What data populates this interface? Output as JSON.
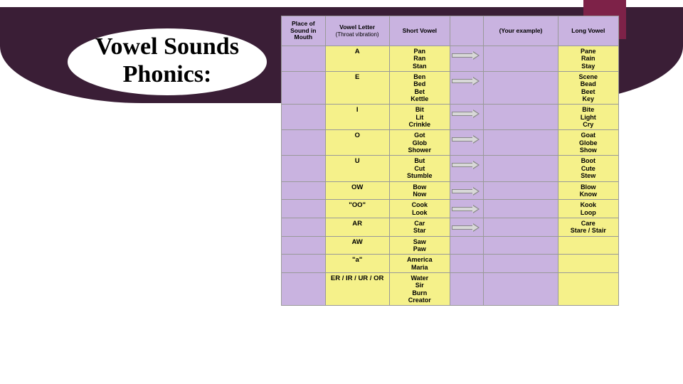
{
  "title_line1": "Vowel Sounds",
  "title_line2": "Phonics:",
  "colors": {
    "banner": "#3a1e36",
    "accent": "#7d2248",
    "header_bg": "#c9b3e0",
    "yellow": "#f5f18a",
    "purple_cell": "#c9b3e0",
    "border": "#999999",
    "arrow_fill": "#d8d8d8",
    "arrow_stroke": "#888888"
  },
  "headers": {
    "place": "Place of Sound in Mouth",
    "letter": "Vowel Letter",
    "letter_sub": "(Throat vibration)",
    "short": "Short Vowel",
    "your": "(Your example)",
    "long": "Long Vowel"
  },
  "rows": [
    {
      "letter": "A",
      "short": [
        "Pan",
        "Ran",
        "Stan"
      ],
      "long": [
        "Pane",
        "Rain",
        "Stay"
      ],
      "arrow": true
    },
    {
      "letter": "E",
      "short": [
        "Ben",
        "Bed",
        "Bet",
        "Kettle"
      ],
      "long": [
        "Scene",
        "Bead",
        "Beet",
        "Key"
      ],
      "arrow": true
    },
    {
      "letter": "I",
      "short": [
        "Bit",
        "Lit",
        "Crinkle"
      ],
      "long": [
        "Bite",
        "Light",
        "Cry"
      ],
      "arrow": true
    },
    {
      "letter": "O",
      "short": [
        "Got",
        "Glob",
        "Shower"
      ],
      "long": [
        "Goat",
        "Globe",
        "Show"
      ],
      "arrow": true
    },
    {
      "letter": "U",
      "short": [
        "But",
        "Cut",
        "Stumble"
      ],
      "long": [
        "Boot",
        "Cute",
        "Stew"
      ],
      "arrow": true
    },
    {
      "letter": "OW",
      "short": [
        "Bow",
        "Now"
      ],
      "long": [
        "Blow",
        "Know"
      ],
      "arrow": true
    },
    {
      "letter": "\"OO\"",
      "short": [
        "Cook",
        "Look"
      ],
      "long": [
        "Kook",
        "Loop"
      ],
      "arrow": true
    },
    {
      "letter": "AR",
      "short": [
        "Car",
        "Star"
      ],
      "long": [
        "Care",
        "Stare / Stair"
      ],
      "arrow": true
    },
    {
      "letter": "AW",
      "short": [
        "Saw",
        "Paw"
      ],
      "long": [],
      "arrow": false
    },
    {
      "letter": "\"a\"",
      "short": [
        "America",
        "Maria"
      ],
      "long": [],
      "arrow": false
    },
    {
      "letter": "ER / IR / UR / OR",
      "short": [
        "Water",
        "Sir",
        "Burn",
        "Creator"
      ],
      "long": [],
      "arrow": false
    }
  ]
}
